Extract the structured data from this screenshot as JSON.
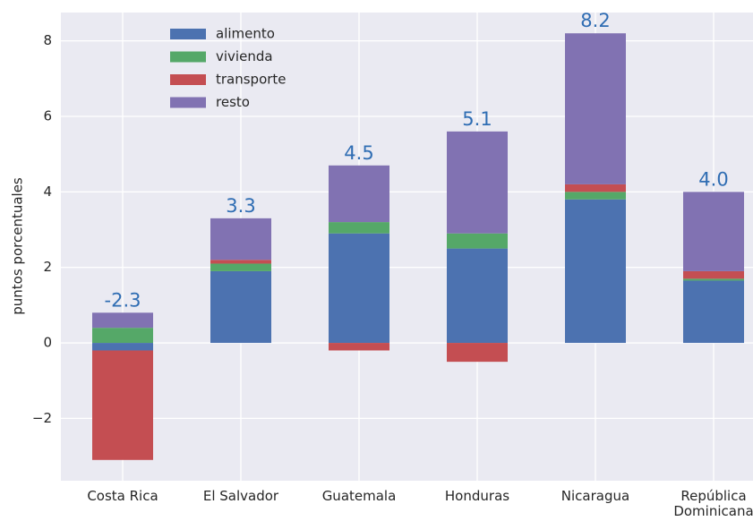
{
  "chart_data": {
    "type": "stacked_bar",
    "ylabel": "puntos porcentuales",
    "categories": [
      "Costa Rica",
      "El Salvador",
      "Guatemala",
      "Honduras",
      "Nicaragua",
      "República Dominicana"
    ],
    "series": [
      {
        "name": "alimento",
        "color": "#4c72b0",
        "values": [
          -0.2,
          1.9,
          2.9,
          2.5,
          3.8,
          1.65
        ]
      },
      {
        "name": "vivienda",
        "color": "#55a868",
        "values": [
          0.4,
          0.2,
          0.3,
          0.4,
          0.2,
          0.05
        ]
      },
      {
        "name": "transporte",
        "color": "#c44e52",
        "values": [
          -2.9,
          0.1,
          -0.2,
          -0.5,
          0.2,
          0.2
        ]
      },
      {
        "name": "resto",
        "color": "#8172b2",
        "values": [
          0.4,
          1.1,
          1.5,
          2.7,
          4.0,
          2.1
        ]
      }
    ],
    "totals": {
      "values": [
        -2.3,
        3.3,
        4.5,
        5.1,
        8.2,
        4
      ],
      "value_labels": [
        "-2.3",
        "3.3",
        "4.5",
        "5.1",
        "8.2",
        "4.0"
      ],
      "color": "#2f6db3"
    },
    "ylim": [
      -3.65,
      8.75
    ],
    "yticks": [
      {
        "value": -2,
        "label": "−2"
      },
      0,
      2,
      4,
      6,
      8
    ],
    "grid": true,
    "legend": "upper left"
  }
}
